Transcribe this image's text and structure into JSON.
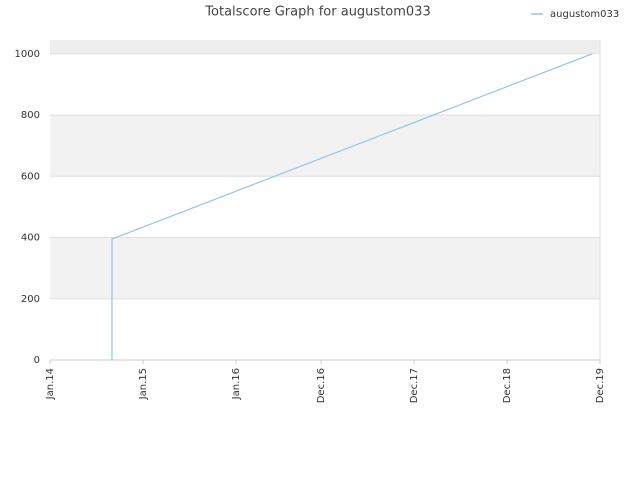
{
  "chart_data": {
    "type": "line",
    "title": "Totalscore Graph for augustom033",
    "x": [
      "2014-09",
      "2014-09",
      "2019-11"
    ],
    "series": [
      {
        "name": "augustom033",
        "color": "#8ec5ec",
        "values": [
          0,
          395,
          1000
        ]
      }
    ],
    "xlim": [
      "2014-01",
      "2019-12"
    ],
    "xticks": [
      {
        "value": "2014-01",
        "label": "Jan.14"
      },
      {
        "value": "2015-01",
        "label": "Jan.15"
      },
      {
        "value": "2016-01",
        "label": "Jan.16"
      },
      {
        "value": "2016-12",
        "label": "Dec.16"
      },
      {
        "value": "2017-12",
        "label": "Dec.17"
      },
      {
        "value": "2018-12",
        "label": "Dec.18"
      },
      {
        "value": "2019-12",
        "label": "Dec.19"
      }
    ],
    "ylim": [
      0,
      1045
    ],
    "yticks": [
      0,
      200,
      400,
      600,
      800,
      1000
    ],
    "grid": true,
    "legend": "top-right"
  }
}
